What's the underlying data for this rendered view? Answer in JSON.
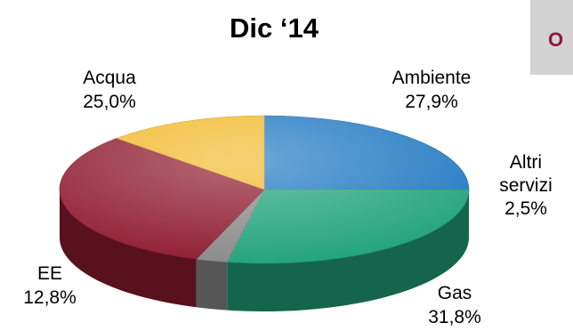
{
  "header": {
    "title": "Dic ‘14",
    "corner_tab_text": "O"
  },
  "chart_data": {
    "type": "pie",
    "title": "Dic ‘14",
    "slices": [
      {
        "label": "Acqua",
        "value": 25.0,
        "display": "25,0%",
        "color": "#1e78c2"
      },
      {
        "label": "Ambiente",
        "value": 27.9,
        "display": "27,9%",
        "color": "#20a37a"
      },
      {
        "label": "Altri servizi",
        "value": 2.5,
        "display": "2,5%",
        "color": "#8a8a8a"
      },
      {
        "label": "Gas",
        "value": 31.8,
        "display": "31,8%",
        "color": "#8e1b2f"
      },
      {
        "label": "EE",
        "value": 12.8,
        "display": "12,8%",
        "color": "#f2b82a"
      }
    ]
  }
}
